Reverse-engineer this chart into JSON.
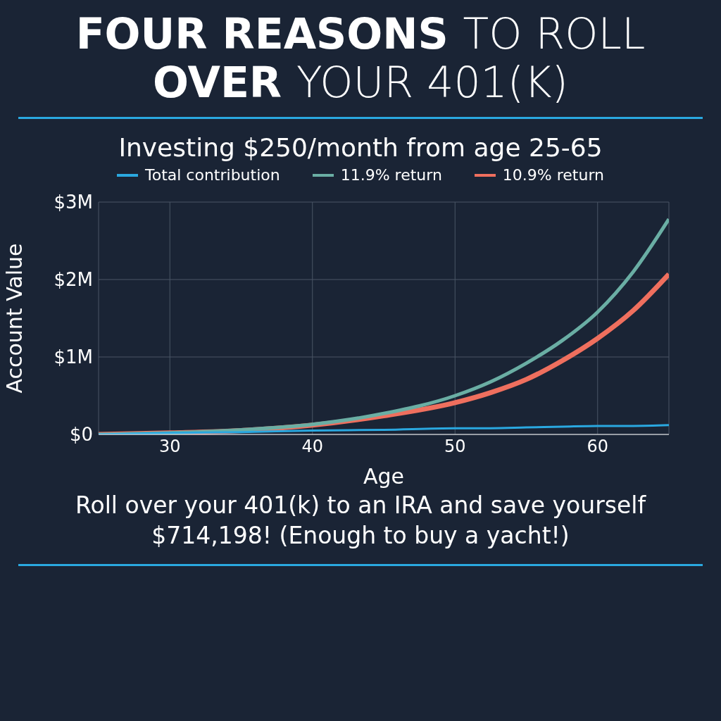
{
  "chart_data": {
    "type": "line",
    "title": "FOUR REASONS TO ROLL OVER YOUR 401(K)",
    "subtitle": "Investing $250/month from age 25-65",
    "xlabel": "Age",
    "ylabel": "Account Value",
    "annotations": [
      "Roll over your 401(k) to an IRA and save yourself $714,198! (Enough to buy a yacht!)"
    ],
    "x": [
      25,
      30,
      35,
      40,
      45,
      50,
      52.5,
      55,
      57.5,
      60,
      62.5,
      65
    ],
    "series": [
      {
        "name": "Total contribution",
        "color": "#2aa8e0",
        "values": [
          0,
          20000,
          30000,
          50000,
          60000,
          80000,
          80000,
          90000,
          100000,
          110000,
          110000,
          120000
        ]
      },
      {
        "name": "11.9% return",
        "color": "#6aaea4",
        "values": [
          0,
          20000,
          60000,
          130000,
          270000,
          500000,
          680000,
          920000,
          1210000,
          1580000,
          2100000,
          2780000
        ]
      },
      {
        "name": "10.9% return",
        "color": "#ef6f5e",
        "values": [
          0,
          20000,
          50000,
          120000,
          240000,
          410000,
          540000,
          710000,
          950000,
          1240000,
          1600000,
          2070000
        ]
      }
    ],
    "xlim": [
      25,
      65
    ],
    "xticks": [
      30,
      40,
      50,
      60
    ],
    "ylim": [
      0,
      3000000
    ],
    "yticks": [
      {
        "value": 0,
        "label": "$0"
      },
      {
        "value": 1000000,
        "label": "$1M"
      },
      {
        "value": 2000000,
        "label": "$2M"
      },
      {
        "value": 3000000,
        "label": "$3M"
      }
    ],
    "grid": true,
    "legend": "top",
    "marker": "none",
    "line_style": "solid"
  }
}
